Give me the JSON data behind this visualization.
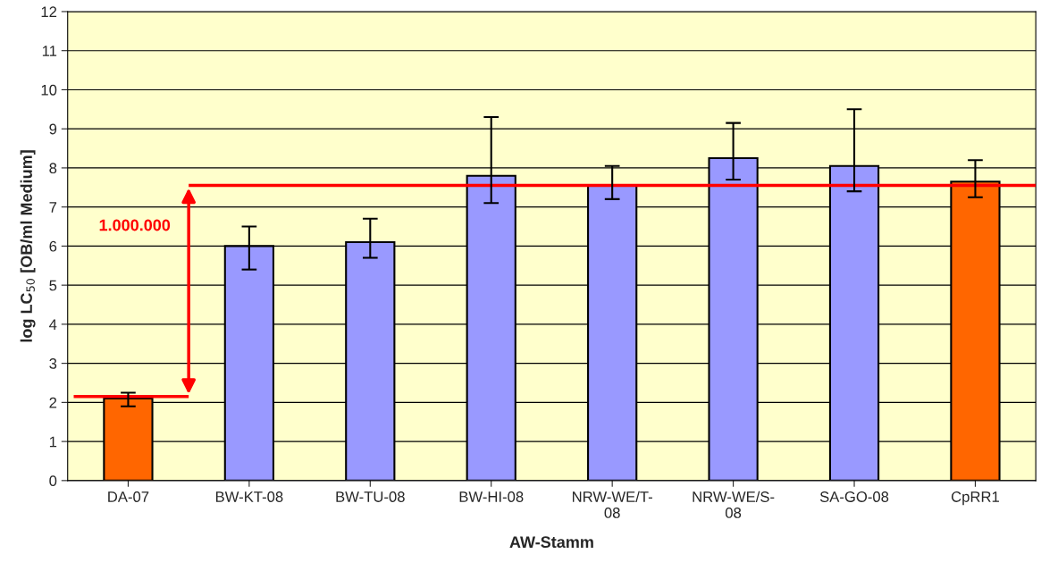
{
  "chart_data": {
    "type": "bar",
    "xlabel": "AW-Stamm",
    "ylabel": "log LC$_{50}$ [OB/ml Medium]",
    "categories": [
      "DA-07",
      "BW-KT-08",
      "BW-TU-08",
      "BW-HI-08",
      "NRW-WE/T-08",
      "NRW-WE/S-08",
      "SA-GO-08",
      "CpRR1"
    ],
    "values": [
      2.1,
      6.0,
      6.1,
      7.8,
      7.55,
      8.25,
      8.05,
      7.65
    ],
    "colors": [
      "#ff6600",
      "#9999ff",
      "#9999ff",
      "#9999ff",
      "#9999ff",
      "#9999ff",
      "#9999ff",
      "#ff6600"
    ],
    "errors": [
      [
        1.9,
        2.25
      ],
      [
        5.4,
        6.5
      ],
      [
        5.7,
        6.7
      ],
      [
        7.1,
        9.3
      ],
      [
        7.2,
        8.05
      ],
      [
        7.7,
        9.15
      ],
      [
        7.4,
        9.5
      ],
      [
        7.25,
        8.2
      ]
    ],
    "ylim": [
      0,
      12
    ],
    "yticks": [
      0,
      1,
      2,
      3,
      4,
      5,
      6,
      7,
      8,
      9,
      10,
      11,
      12
    ],
    "grid": "y",
    "ref_lines": [
      {
        "axis": "y",
        "value": 2.15,
        "color": "#ff0000"
      },
      {
        "axis": "y",
        "value": 7.55,
        "color": "#ff0000"
      }
    ],
    "annotations": [
      "1.000.000"
    ]
  }
}
